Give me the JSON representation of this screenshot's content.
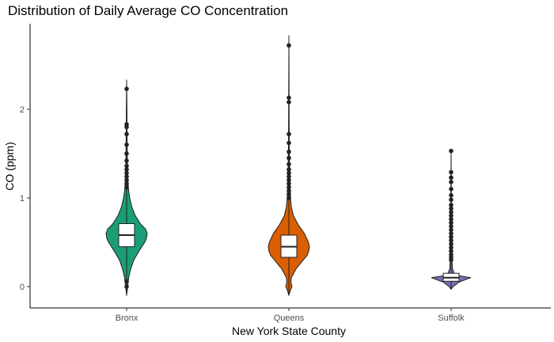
{
  "chart_data": {
    "type": "violin",
    "title": "Distribution of Daily Average CO Concentration",
    "xlabel": "New York State County",
    "ylabel": "CO (ppm)",
    "categories": [
      "Bronx",
      "Queens",
      "Suffolk"
    ],
    "yticks": [
      0,
      1,
      2
    ],
    "ylim": [
      -0.23,
      2.83
    ],
    "grid": false,
    "legend": "none",
    "series": [
      {
        "category": "Bronx",
        "color": "#1b9e77",
        "min": -0.1,
        "max": 2.33,
        "q1": 0.45,
        "median": 0.58,
        "q3": 0.71,
        "whisker_low": 0.06,
        "whisker_high": 1.1,
        "density": [
          [
            -0.1,
            0
          ],
          [
            0,
            0.05
          ],
          [
            0.1,
            0.1
          ],
          [
            0.2,
            0.2
          ],
          [
            0.3,
            0.35
          ],
          [
            0.4,
            0.6
          ],
          [
            0.5,
            0.88
          ],
          [
            0.55,
            0.97
          ],
          [
            0.6,
            1.0
          ],
          [
            0.65,
            0.92
          ],
          [
            0.7,
            0.7
          ],
          [
            0.8,
            0.42
          ],
          [
            0.9,
            0.25
          ],
          [
            1.0,
            0.15
          ],
          [
            1.1,
            0.09
          ],
          [
            1.2,
            0.06
          ],
          [
            1.3,
            0.04
          ],
          [
            1.5,
            0.03
          ],
          [
            1.8,
            0.02
          ],
          [
            2.0,
            0.015
          ],
          [
            2.33,
            0
          ]
        ],
        "outliers": [
          0.0,
          0.06,
          1.12,
          1.16,
          1.2,
          1.24,
          1.28,
          1.32,
          1.36,
          1.42,
          1.5,
          1.6,
          1.72,
          1.8,
          1.83,
          2.23
        ]
      },
      {
        "category": "Queens",
        "color": "#d95f02",
        "min": -0.1,
        "max": 2.83,
        "q1": 0.33,
        "median": 0.45,
        "q3": 0.58,
        "whisker_low": -0.03,
        "whisker_high": 0.95,
        "density": [
          [
            -0.1,
            0
          ],
          [
            -0.05,
            0.06
          ],
          [
            0,
            0.15
          ],
          [
            0.05,
            0.1
          ],
          [
            0.1,
            0.12
          ],
          [
            0.2,
            0.35
          ],
          [
            0.3,
            0.7
          ],
          [
            0.35,
            0.88
          ],
          [
            0.4,
            0.97
          ],
          [
            0.45,
            1.0
          ],
          [
            0.5,
            0.95
          ],
          [
            0.6,
            0.75
          ],
          [
            0.7,
            0.45
          ],
          [
            0.8,
            0.22
          ],
          [
            0.9,
            0.12
          ],
          [
            1.0,
            0.08
          ],
          [
            1.1,
            0.06
          ],
          [
            1.3,
            0.04
          ],
          [
            1.6,
            0.02
          ],
          [
            2.0,
            0.01
          ],
          [
            2.83,
            0
          ]
        ],
        "outliers": [
          1.0,
          1.04,
          1.08,
          1.12,
          1.16,
          1.2,
          1.24,
          1.28,
          1.32,
          1.38,
          1.45,
          1.52,
          1.62,
          1.72,
          2.08,
          2.13,
          2.72
        ]
      },
      {
        "category": "Suffolk",
        "color": "#7570b3",
        "min": -0.03,
        "max": 1.53,
        "q1": 0.06,
        "median": 0.1,
        "q3": 0.15,
        "whisker_low": -0.01,
        "whisker_high": 0.28,
        "density": [
          [
            -0.03,
            0
          ],
          [
            0,
            0.1
          ],
          [
            0.05,
            0.38
          ],
          [
            0.08,
            0.72
          ],
          [
            0.1,
            0.95
          ],
          [
            0.12,
            0.45
          ],
          [
            0.15,
            0.15
          ],
          [
            0.2,
            0.07
          ],
          [
            0.3,
            0.04
          ],
          [
            0.5,
            0.025
          ],
          [
            0.8,
            0.015
          ],
          [
            1.0,
            0.01
          ],
          [
            1.2,
            0.006
          ],
          [
            1.53,
            0
          ]
        ],
        "outliers": [
          0.3,
          0.33,
          0.36,
          0.4,
          0.44,
          0.48,
          0.52,
          0.56,
          0.6,
          0.64,
          0.68,
          0.72,
          0.76,
          0.8,
          0.84,
          0.88,
          0.92,
          0.98,
          1.03,
          1.1,
          1.18,
          1.23,
          1.29,
          1.53
        ]
      }
    ]
  }
}
